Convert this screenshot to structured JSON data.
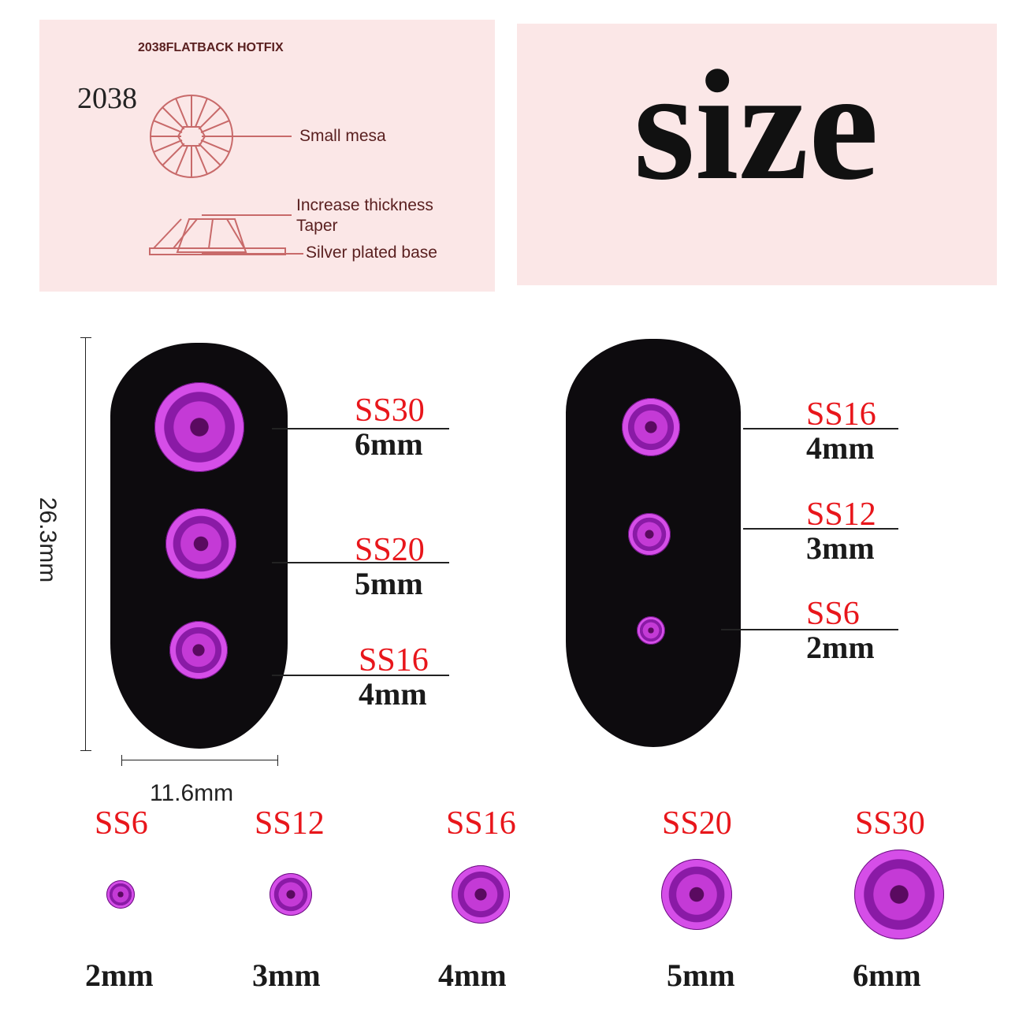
{
  "diagram": {
    "heading": "2038FLATBACK HOTFIX",
    "model": "2038",
    "labels": [
      "Small mesa",
      "Increase thickness",
      "Taper",
      "Silver plated base"
    ]
  },
  "title": "size",
  "dimensions": {
    "height": "26.3mm",
    "width": "11.6mm"
  },
  "left_nail": [
    {
      "ss": "SS30",
      "mm": "6mm"
    },
    {
      "ss": "SS20",
      "mm": "5mm"
    },
    {
      "ss": "SS16",
      "mm": "4mm"
    }
  ],
  "right_nail": [
    {
      "ss": "SS16",
      "mm": "4mm"
    },
    {
      "ss": "SS12",
      "mm": "3mm"
    },
    {
      "ss": "SS6",
      "mm": "2mm"
    }
  ],
  "row": [
    {
      "ss": "SS6",
      "mm": "2mm"
    },
    {
      "ss": "SS12",
      "mm": "3mm"
    },
    {
      "ss": "SS16",
      "mm": "4mm"
    },
    {
      "ss": "SS20",
      "mm": "5mm"
    },
    {
      "ss": "SS30",
      "mm": "6mm"
    }
  ],
  "colors": {
    "label_red": "#e8161b",
    "gem": "#c43ad6",
    "panel": "#fbe7e7"
  }
}
